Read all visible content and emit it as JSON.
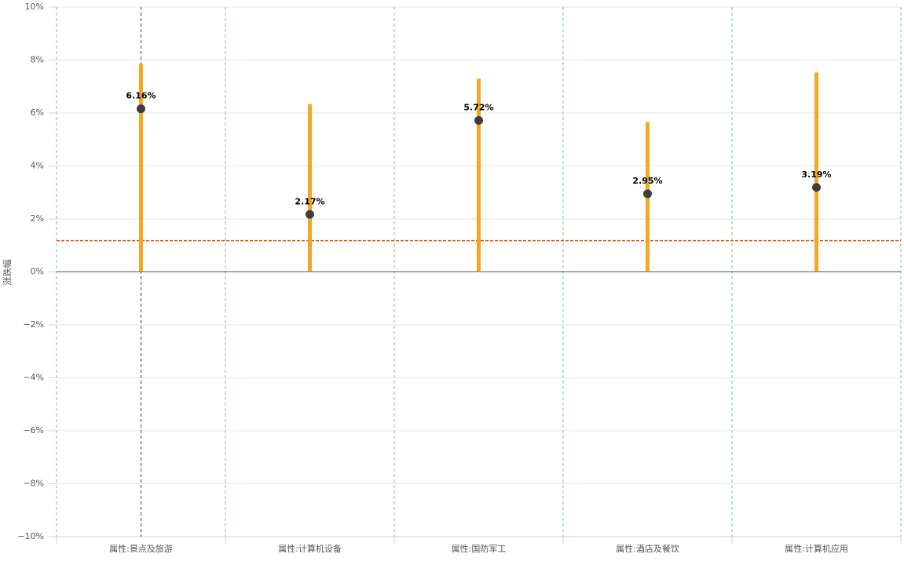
{
  "chart_data": {
    "type": "dot-range",
    "y_label": "涨跌幅",
    "categories": [
      "属性:景点及旅游",
      "属性:计算机设备",
      "属性:国防军工",
      "属性:酒店及餐饮",
      "属性:计算机应用"
    ],
    "series": [
      {
        "color": "#f5a623",
        "values": [
          7.85,
          6.34,
          7.29,
          5.66,
          7.53
        ]
      },
      {
        "color": "#3d3d3d",
        "values": [
          6.16,
          2.17,
          5.72,
          2.95,
          3.19
        ],
        "value_labels": [
          "6.16%",
          "2.17%",
          "5.72%",
          "2.95%",
          "3.19%"
        ]
      }
    ],
    "ylim": [
      -10,
      10
    ],
    "yticks": [
      {
        "value": 10,
        "label": "10%"
      },
      {
        "value": 8,
        "label": "8%"
      },
      {
        "value": 6,
        "label": "6%"
      },
      {
        "value": 4,
        "label": "4%"
      },
      {
        "value": 2,
        "label": "2%"
      },
      {
        "value": 0,
        "label": "0%"
      },
      {
        "value": -2,
        "label": "−2%"
      },
      {
        "value": -4,
        "label": "−4%"
      },
      {
        "value": -6,
        "label": "−6%"
      },
      {
        "value": -8,
        "label": "−8%"
      },
      {
        "value": -10,
        "label": "−10%"
      }
    ],
    "grid": true,
    "reference_line": {
      "value": 1.18,
      "color": "#e8541a"
    },
    "crosshair_category": 0
  }
}
